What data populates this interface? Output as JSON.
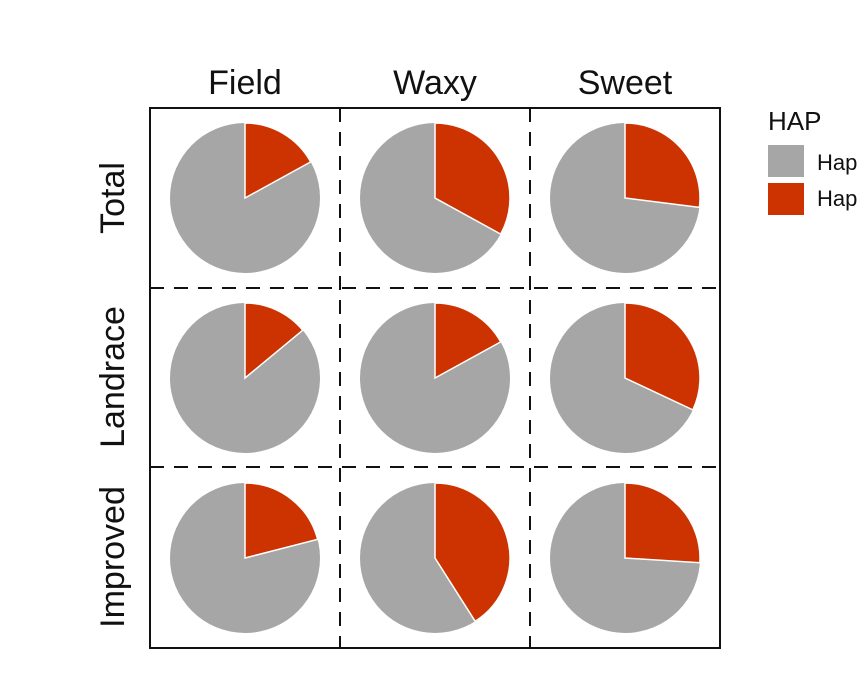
{
  "chart_data": {
    "type": "pie",
    "columns": [
      "Field",
      "Waxy",
      "Sweet"
    ],
    "rows": [
      "Total",
      "Landrace",
      "Improved"
    ],
    "legend": {
      "title": "HAP",
      "placement": "right",
      "entries": [
        {
          "label": "Hap",
          "color": "#a6a6a6"
        },
        {
          "label": "Hap",
          "color": "#cc3300"
        }
      ]
    },
    "cells": [
      {
        "row": "Total",
        "column": "Field",
        "slices": [
          0.83,
          0.17
        ]
      },
      {
        "row": "Total",
        "column": "Waxy",
        "slices": [
          0.67,
          0.33
        ]
      },
      {
        "row": "Total",
        "column": "Sweet",
        "slices": [
          0.73,
          0.27
        ]
      },
      {
        "row": "Landrace",
        "column": "Field",
        "slices": [
          0.86,
          0.14
        ]
      },
      {
        "row": "Landrace",
        "column": "Waxy",
        "slices": [
          0.83,
          0.17
        ]
      },
      {
        "row": "Landrace",
        "column": "Sweet",
        "slices": [
          0.68,
          0.32
        ]
      },
      {
        "row": "Improved",
        "column": "Field",
        "slices": [
          0.79,
          0.21
        ]
      },
      {
        "row": "Improved",
        "column": "Waxy",
        "slices": [
          0.59,
          0.41
        ]
      },
      {
        "row": "Improved",
        "column": "Sweet",
        "slices": [
          0.74,
          0.26
        ]
      }
    ],
    "grid": "dashed"
  }
}
